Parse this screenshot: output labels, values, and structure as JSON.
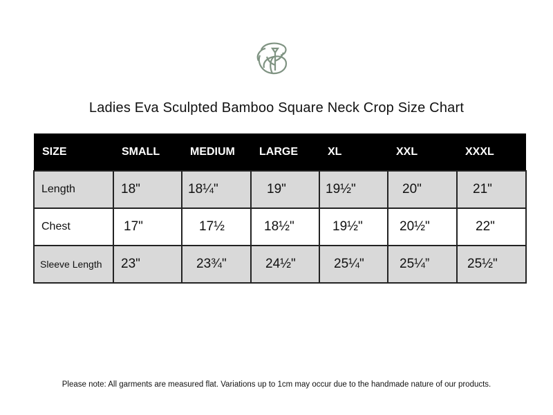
{
  "logo": {
    "icon": "leaf-monogram-logo",
    "color": "#7f9382"
  },
  "title": "Ladies Eva Sculpted Bamboo Square Neck Crop Size Chart",
  "table": {
    "headers": [
      "SIZE",
      "SMALL",
      "MEDIUM",
      "LARGE",
      "XL",
      "XXL",
      "XXXL"
    ],
    "rows": [
      {
        "label": "Length",
        "values": [
          "18\"",
          "18¼\"",
          "19\"",
          "19½\"",
          "20\"",
          "21\""
        ]
      },
      {
        "label": "Chest",
        "values": [
          "17\"",
          "17½",
          "18½\"",
          "19½\"",
          "20½\"",
          "22\""
        ]
      },
      {
        "label": "Sleeve Length",
        "values": [
          "23\"",
          "23¾\"",
          "24½\"",
          "25¼\"",
          "25¼”",
          "25½\""
        ]
      }
    ],
    "colors": {
      "header_bg": "#000000",
      "header_text": "#ffffff",
      "shaded_row": "#d9d9d9"
    }
  },
  "note": "Please note: All garments are measured flat. Variations up to 1cm may occur due to the handmade nature of our products."
}
